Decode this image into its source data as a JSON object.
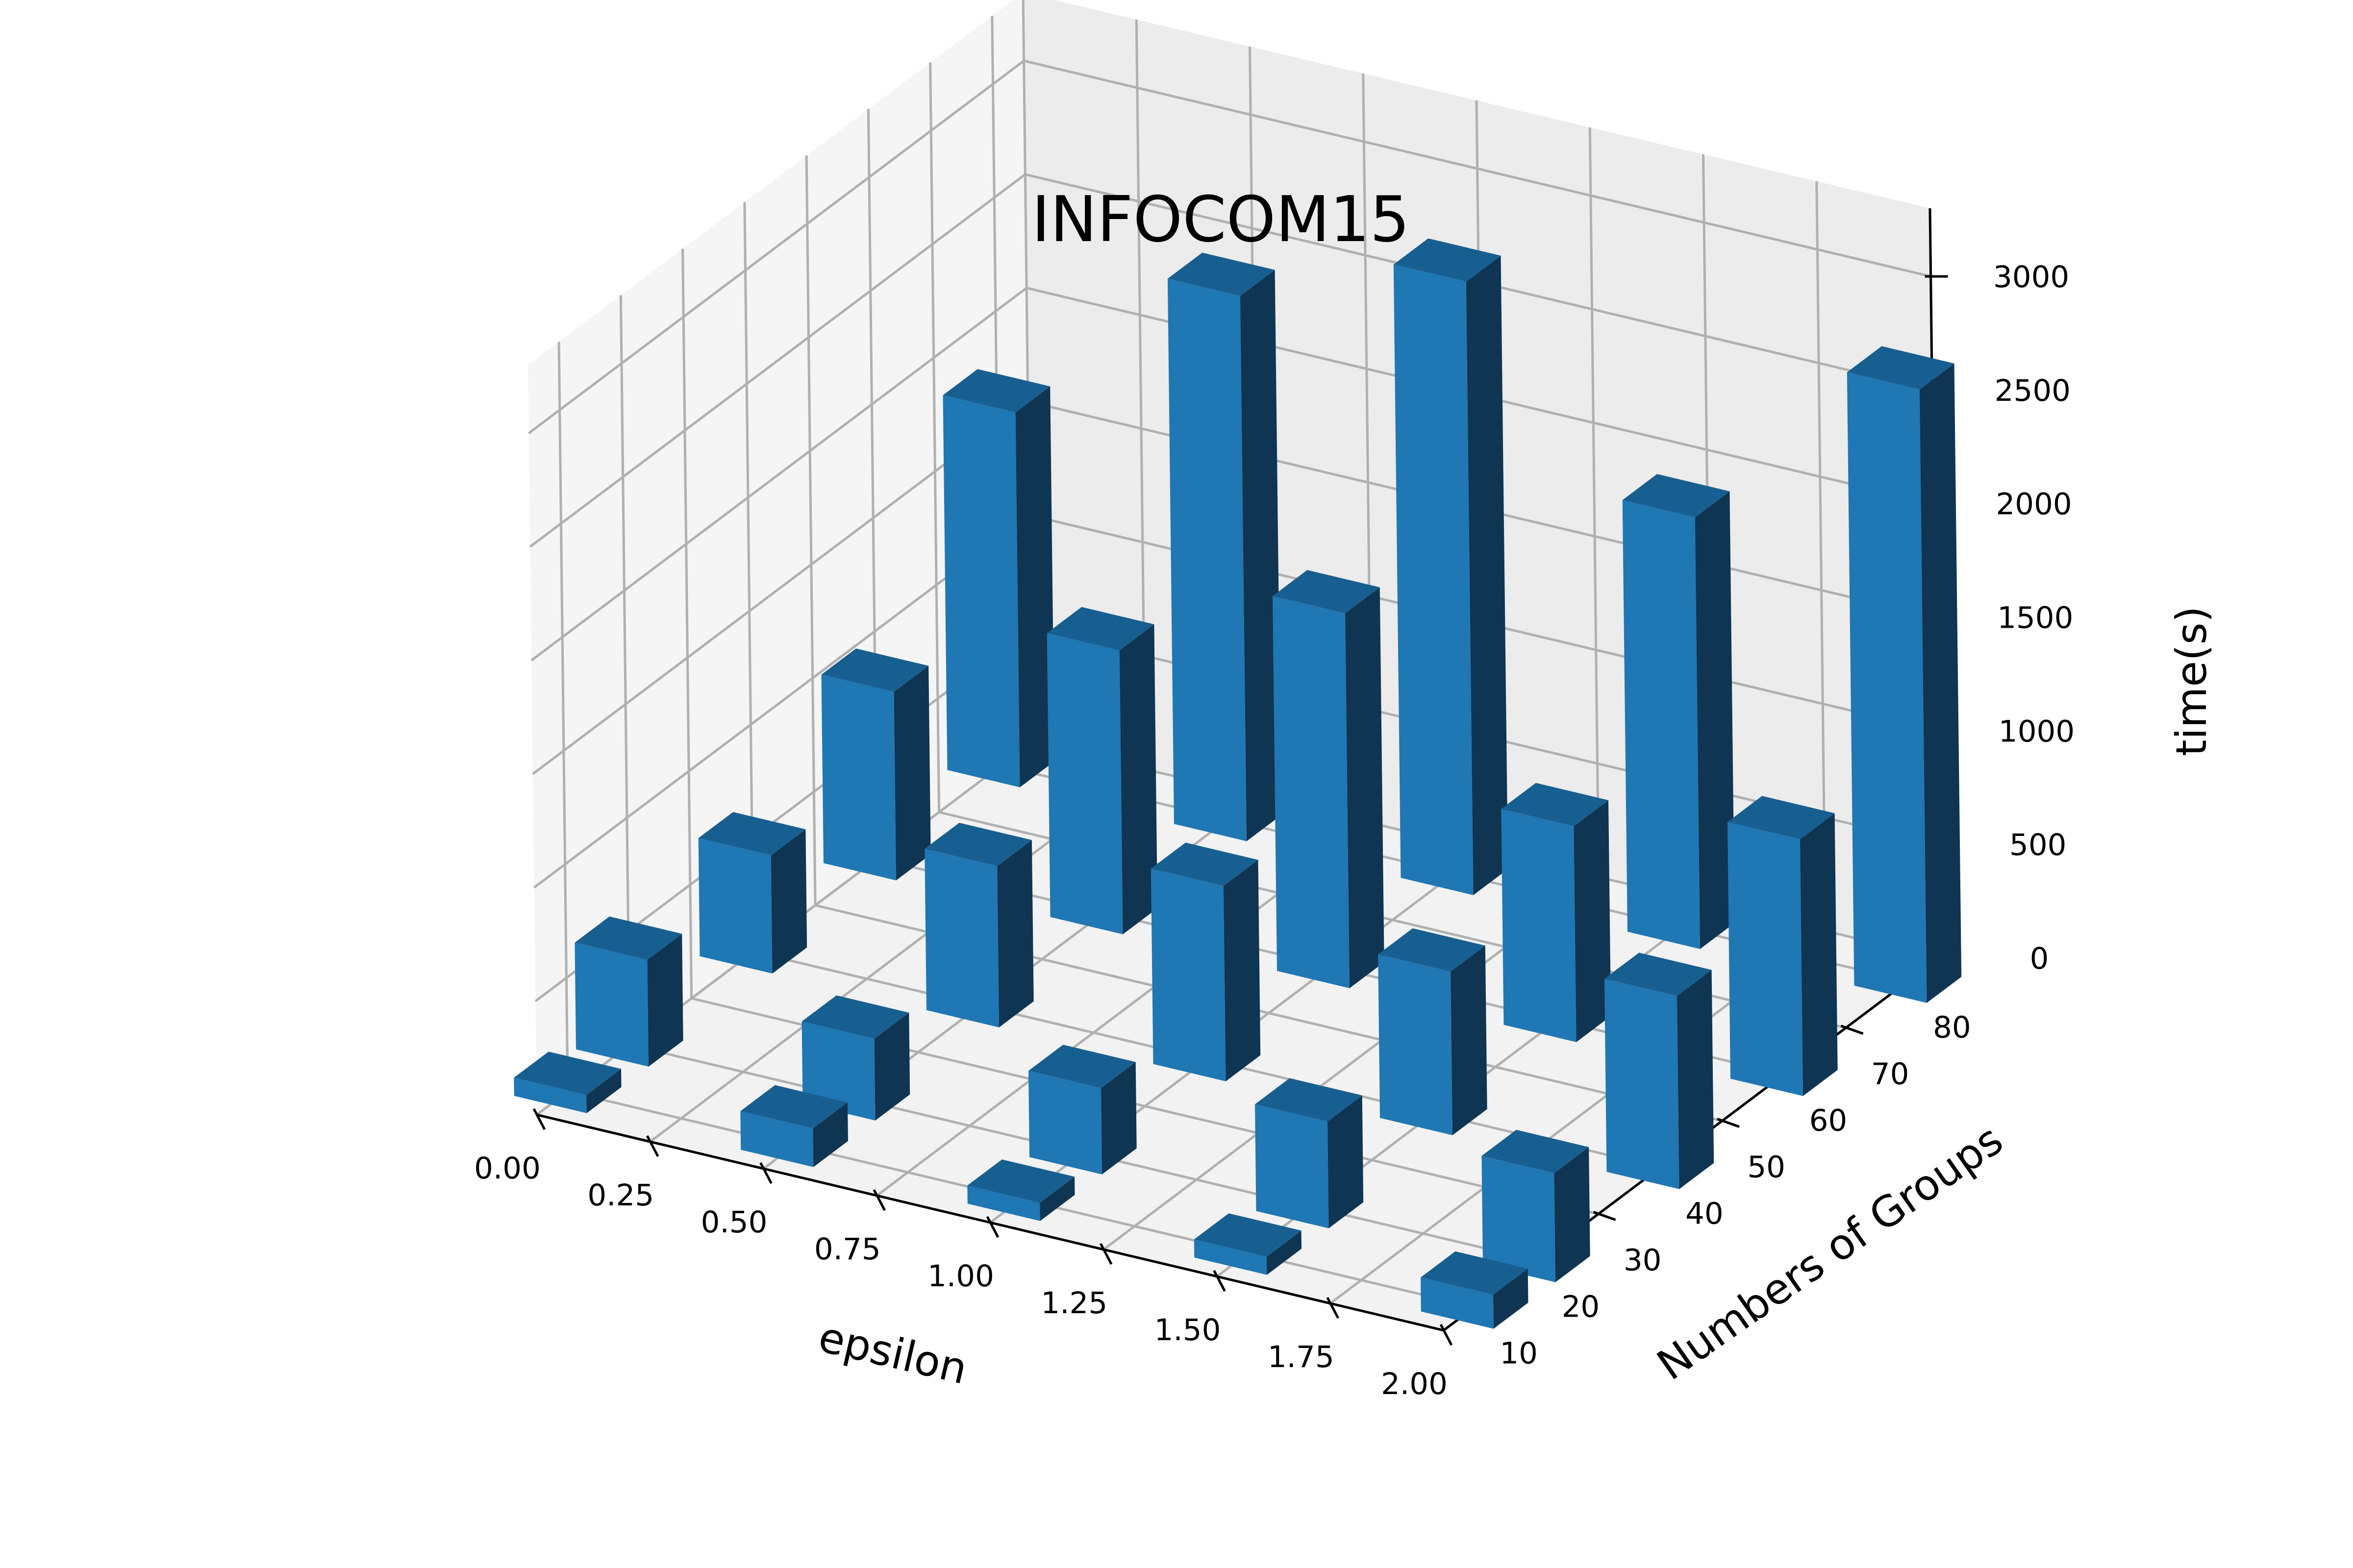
{
  "chart_data": {
    "type": "bar3d",
    "title": "INFOCOM15",
    "xlabel": "epsilon",
    "ylabel": "Numbers of Groups",
    "zlabel": "time(s)",
    "x_ticks": [
      "0.00",
      "0.25",
      "0.50",
      "0.75",
      "1.00",
      "1.25",
      "1.50",
      "1.75",
      "2.00"
    ],
    "y_ticks": [
      "10",
      "20",
      "30",
      "40",
      "50",
      "60",
      "70",
      "80"
    ],
    "z_ticks": [
      "0",
      "500",
      "1000",
      "1500",
      "2000",
      "2500",
      "3000"
    ],
    "epsilon": [
      0.0,
      0.5,
      1.0,
      1.5,
      2.0
    ],
    "groups": [
      10,
      20,
      40,
      60,
      80
    ],
    "zlim": [
      0,
      3300
    ],
    "grid": true,
    "bar_color": "#1f77b4",
    "bars": [
      {
        "epsilon": 0.0,
        "groups": 10,
        "time": 80
      },
      {
        "epsilon": 0.0,
        "groups": 20,
        "time": 470
      },
      {
        "epsilon": 0.0,
        "groups": 40,
        "time": 520
      },
      {
        "epsilon": 0.0,
        "groups": 60,
        "time": 830
      },
      {
        "epsilon": 0.0,
        "groups": 80,
        "time": 1650
      },
      {
        "epsilon": 0.5,
        "groups": 10,
        "time": 170
      },
      {
        "epsilon": 0.5,
        "groups": 20,
        "time": 360
      },
      {
        "epsilon": 0.5,
        "groups": 40,
        "time": 710
      },
      {
        "epsilon": 0.5,
        "groups": 60,
        "time": 1250
      },
      {
        "epsilon": 0.5,
        "groups": 80,
        "time": 2400
      },
      {
        "epsilon": 1.0,
        "groups": 10,
        "time": 80
      },
      {
        "epsilon": 1.0,
        "groups": 20,
        "time": 380
      },
      {
        "epsilon": 1.0,
        "groups": 40,
        "time": 860
      },
      {
        "epsilon": 1.0,
        "groups": 60,
        "time": 1650
      },
      {
        "epsilon": 1.0,
        "groups": 80,
        "time": 2700
      },
      {
        "epsilon": 1.5,
        "groups": 10,
        "time": 80
      },
      {
        "epsilon": 1.5,
        "groups": 20,
        "time": 470
      },
      {
        "epsilon": 1.5,
        "groups": 40,
        "time": 720
      },
      {
        "epsilon": 1.5,
        "groups": 60,
        "time": 950
      },
      {
        "epsilon": 1.5,
        "groups": 80,
        "time": 1900
      },
      {
        "epsilon": 2.0,
        "groups": 10,
        "time": 150
      },
      {
        "epsilon": 2.0,
        "groups": 20,
        "time": 480
      },
      {
        "epsilon": 2.0,
        "groups": 40,
        "time": 850
      },
      {
        "epsilon": 2.0,
        "groups": 60,
        "time": 1130
      },
      {
        "epsilon": 2.0,
        "groups": 80,
        "time": 2700
      }
    ]
  }
}
